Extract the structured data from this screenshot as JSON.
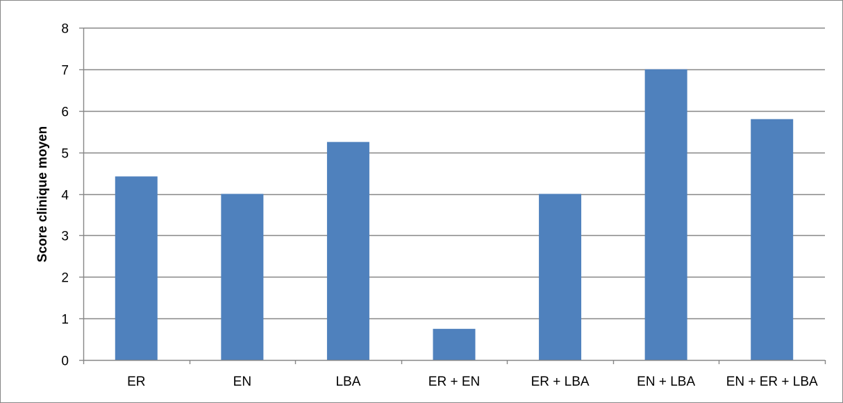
{
  "chart_data": {
    "type": "bar",
    "title": "",
    "xlabel": "",
    "ylabel": "Score clinique moyen",
    "categories": [
      "ER",
      "EN",
      "LBA",
      "ER + EN",
      "ER + LBA",
      "EN + LBA",
      "EN + ER + LBA"
    ],
    "values": [
      4.42,
      4.0,
      5.25,
      0.75,
      4.0,
      7.0,
      5.8
    ],
    "ylim": [
      0,
      8
    ],
    "yticks": [
      "0",
      "1",
      "2",
      "3",
      "4",
      "5",
      "6",
      "7",
      "8"
    ],
    "grid": true,
    "legend": "none",
    "colors": {
      "bar": "#4f81bd",
      "grid": "#868686",
      "axis": "#868686",
      "border": "#868686"
    }
  }
}
